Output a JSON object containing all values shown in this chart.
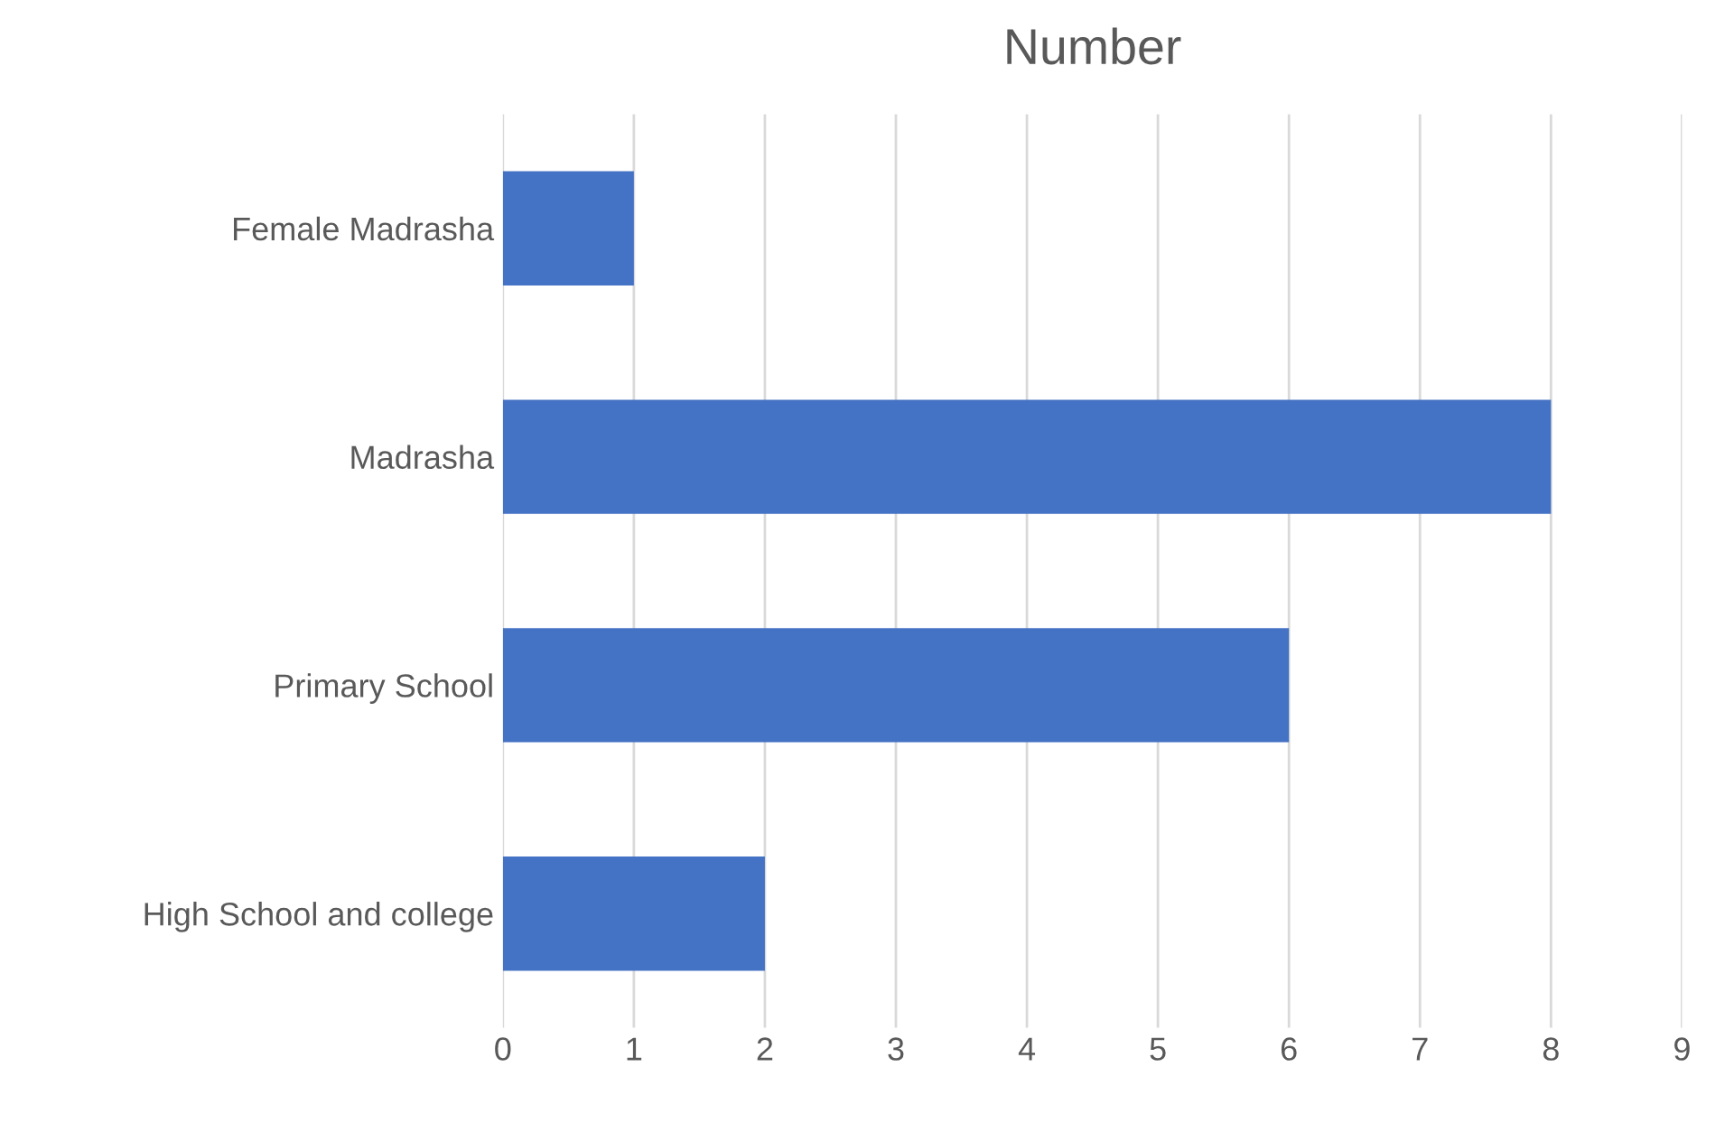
{
  "chart_data": {
    "type": "bar",
    "orientation": "horizontal",
    "title": "Number",
    "categories": [
      "Female Madrasha",
      "Madrasha",
      "Primary School",
      "High School and college"
    ],
    "values": [
      1,
      8,
      6,
      2
    ],
    "color": "#4472c4",
    "xlim": [
      0,
      9
    ],
    "xticks": [
      0,
      1,
      2,
      3,
      4,
      5,
      6,
      7,
      8,
      9
    ],
    "grid": "x"
  }
}
